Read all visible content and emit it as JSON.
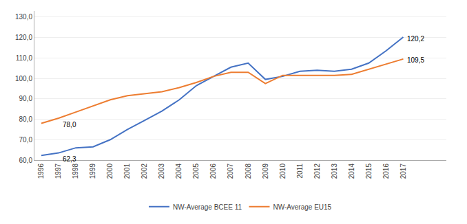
{
  "chart_data": {
    "type": "line",
    "x": [
      1996,
      1997,
      1998,
      1999,
      2000,
      2001,
      2002,
      2003,
      2004,
      2005,
      2006,
      2007,
      2008,
      2009,
      2010,
      2011,
      2012,
      2013,
      2014,
      2015,
      2016,
      2017
    ],
    "series": [
      {
        "name": "NW-Average BCEE 11",
        "color": "#4472C4",
        "values": [
          62.3,
          63.5,
          66.0,
          66.5,
          70.0,
          75.0,
          79.5,
          84.0,
          89.5,
          96.5,
          101.0,
          105.5,
          107.5,
          99.5,
          101.0,
          103.5,
          104.0,
          103.5,
          104.5,
          107.5,
          113.5,
          120.2
        ]
      },
      {
        "name": "NW-Average EU15",
        "color": "#ED7D31",
        "values": [
          78.0,
          80.5,
          83.5,
          86.5,
          89.5,
          91.5,
          92.5,
          93.5,
          95.5,
          98.0,
          101.0,
          103.0,
          103.0,
          97.5,
          101.5,
          101.5,
          101.5,
          101.5,
          102.0,
          104.5,
          107.0,
          109.5
        ]
      }
    ],
    "annotations": [
      {
        "text": "62,3",
        "x": 1997,
        "y": 63.5
      },
      {
        "text": "78,0",
        "x": 1997,
        "y": 80.5
      },
      {
        "text": "120,2",
        "x": 2017,
        "y": 120.2
      },
      {
        "text": "109,5",
        "x": 2017,
        "y": 109.5
      }
    ],
    "xlim": [
      1995.6,
      2019.5
    ],
    "xticks": [
      1996,
      1997,
      1998,
      1999,
      2000,
      2001,
      2002,
      2003,
      2004,
      2005,
      2006,
      2007,
      2008,
      2009,
      2010,
      2011,
      2012,
      2013,
      2014,
      2015,
      2016,
      2017
    ],
    "ylim": [
      60.0,
      133.0
    ],
    "yticks": [
      {
        "value": 60.0,
        "label": "60,0"
      },
      {
        "value": 70.0,
        "label": "70,0"
      },
      {
        "value": 80.0,
        "label": "80,0"
      },
      {
        "value": 90.0,
        "label": "90,0"
      },
      {
        "value": 100.0,
        "label": "100,0"
      },
      {
        "value": 110.0,
        "label": "110,0"
      },
      {
        "value": 120.0,
        "label": "120,0"
      },
      {
        "value": 130.0,
        "label": "130,0"
      }
    ],
    "grid": true,
    "legend": "bottom"
  }
}
